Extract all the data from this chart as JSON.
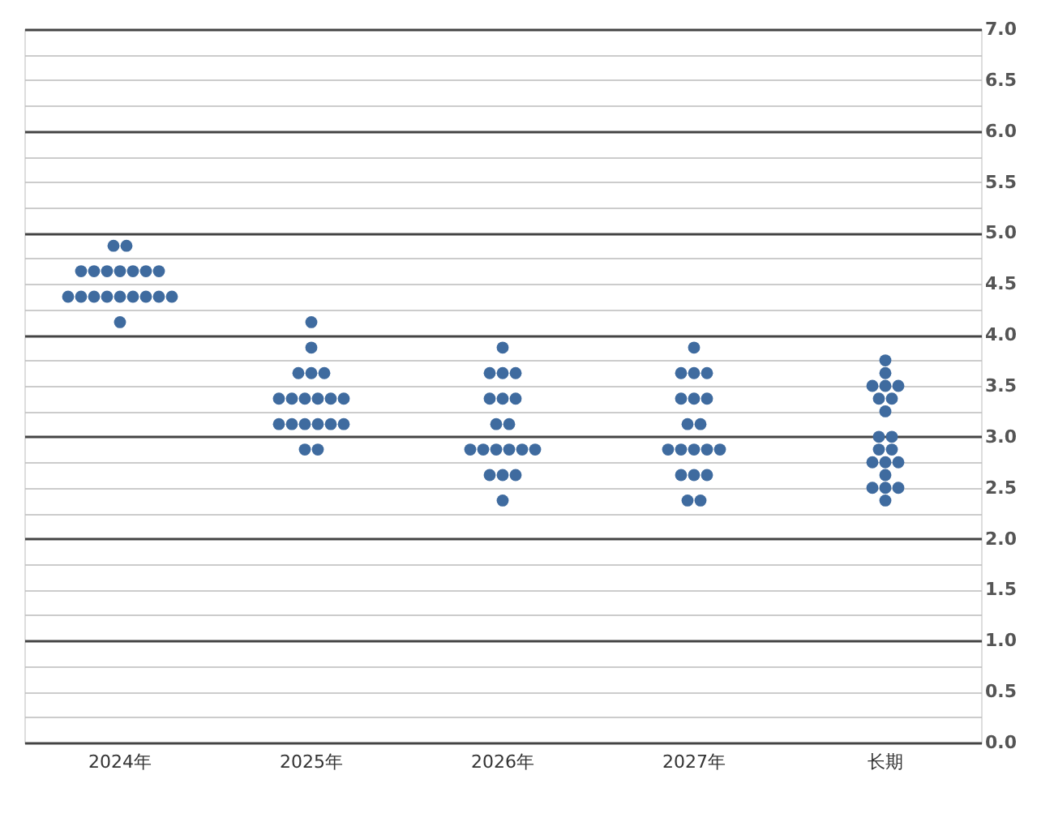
{
  "chart_data": {
    "type": "scatter",
    "categories": [
      "2024年",
      "2025年",
      "2026年",
      "2027年",
      "长期"
    ],
    "series": [
      {
        "color": "#3f6b9f",
        "x": [
          "2024年",
          "2024年",
          "2024年",
          "2024年",
          "2024年",
          "2024年",
          "2024年",
          "2024年",
          "2024年",
          "2024年",
          "2024年",
          "2024年",
          "2024年",
          "2024年",
          "2024年",
          "2024年",
          "2024年",
          "2024年",
          "2024年",
          "2025年",
          "2025年",
          "2025年",
          "2025年",
          "2025年",
          "2025年",
          "2025年",
          "2025年",
          "2025年",
          "2025年",
          "2025年",
          "2025年",
          "2025年",
          "2025年",
          "2025年",
          "2025年",
          "2025年",
          "2025年",
          "2025年",
          "2026年",
          "2026年",
          "2026年",
          "2026年",
          "2026年",
          "2026年",
          "2026年",
          "2026年",
          "2026年",
          "2026年",
          "2026年",
          "2026年",
          "2026年",
          "2026年",
          "2026年",
          "2026年",
          "2026年",
          "2026年",
          "2026年",
          "2027年",
          "2027年",
          "2027年",
          "2027年",
          "2027年",
          "2027年",
          "2027年",
          "2027年",
          "2027年",
          "2027年",
          "2027年",
          "2027年",
          "2027年",
          "2027年",
          "2027年",
          "2027年",
          "2027年",
          "2027年",
          "2027年",
          "长期",
          "长期",
          "长期",
          "长期",
          "长期",
          "长期",
          "长期",
          "长期",
          "长期",
          "长期",
          "长期",
          "长期",
          "长期",
          "长期",
          "长期",
          "长期",
          "长期",
          "长期",
          "长期",
          "长期"
        ],
        "values": [
          4.875,
          4.875,
          4.625,
          4.625,
          4.625,
          4.625,
          4.625,
          4.625,
          4.625,
          4.375,
          4.375,
          4.375,
          4.375,
          4.375,
          4.375,
          4.375,
          4.375,
          4.375,
          4.125,
          4.125,
          3.875,
          3.625,
          3.625,
          3.625,
          3.375,
          3.375,
          3.375,
          3.375,
          3.375,
          3.375,
          3.125,
          3.125,
          3.125,
          3.125,
          3.125,
          3.125,
          2.875,
          2.875,
          3.875,
          3.625,
          3.625,
          3.625,
          3.375,
          3.375,
          3.375,
          3.125,
          3.125,
          2.875,
          2.875,
          2.875,
          2.875,
          2.875,
          2.875,
          2.625,
          2.625,
          2.625,
          2.375,
          3.875,
          3.625,
          3.625,
          3.625,
          3.375,
          3.375,
          3.375,
          3.125,
          3.125,
          2.875,
          2.875,
          2.875,
          2.875,
          2.875,
          2.625,
          2.625,
          2.625,
          2.375,
          2.375,
          3.75,
          3.625,
          3.5,
          3.5,
          3.5,
          3.375,
          3.375,
          3.25,
          3.0,
          3.0,
          2.875,
          2.875,
          2.75,
          2.75,
          2.75,
          2.625,
          2.5,
          2.5,
          2.5,
          2.375
        ]
      }
    ],
    "ylim": [
      0,
      7
    ],
    "yticks": [
      {
        "value": 0,
        "label": "0.0"
      },
      {
        "value": 0.25,
        "label": null
      },
      {
        "value": 0.5,
        "label": "0.5"
      },
      {
        "value": 0.75,
        "label": null
      },
      {
        "value": 1,
        "label": "1.0"
      },
      {
        "value": 1.25,
        "label": null
      },
      {
        "value": 1.5,
        "label": "1.5"
      },
      {
        "value": 1.75,
        "label": null
      },
      {
        "value": 2,
        "label": "2.0"
      },
      {
        "value": 2.25,
        "label": null
      },
      {
        "value": 2.5,
        "label": "2.5"
      },
      {
        "value": 2.75,
        "label": null
      },
      {
        "value": 3,
        "label": "3.0"
      },
      {
        "value": 3.25,
        "label": null
      },
      {
        "value": 3.5,
        "label": "3.5"
      },
      {
        "value": 3.75,
        "label": null
      },
      {
        "value": 4,
        "label": "4.0"
      },
      {
        "value": 4.25,
        "label": null
      },
      {
        "value": 4.5,
        "label": "4.5"
      },
      {
        "value": 4.75,
        "label": null
      },
      {
        "value": 5,
        "label": "5.0"
      },
      {
        "value": 5.25,
        "label": null
      },
      {
        "value": 5.5,
        "label": "5.5"
      },
      {
        "value": 5.75,
        "label": null
      },
      {
        "value": 6,
        "label": "6.0"
      },
      {
        "value": 6.25,
        "label": null
      },
      {
        "value": 6.5,
        "label": "6.5"
      },
      {
        "value": 6.75,
        "label": null
      },
      {
        "value": 7,
        "label": "7.0"
      }
    ],
    "grid": "y",
    "marker": "circle",
    "legend": false
  }
}
